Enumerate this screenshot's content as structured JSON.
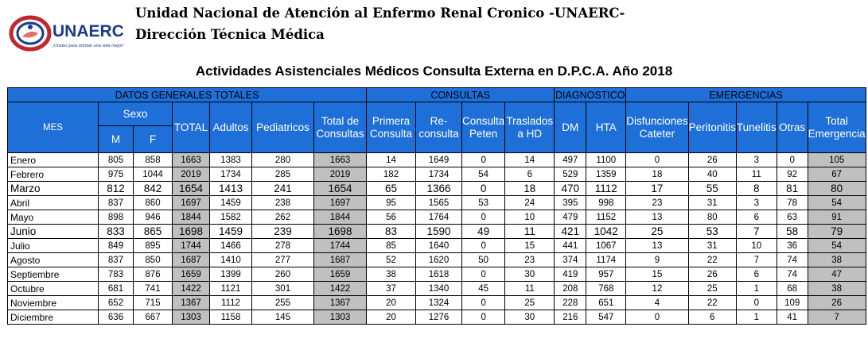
{
  "header": {
    "logo_text": "UNAERC",
    "logo_tagline": "¡Unidos para brindar una vida mejor!",
    "line1": "Unidad Nacional de Atención al Enfermo Renal Cronico -UNAERC-",
    "line2": "Dirección Técnica Médica"
  },
  "title": "Actividades Asistenciales Médicos Consulta Externa en D.P.C.A. Año 2018",
  "table": {
    "sections": {
      "datos": "DATOS GENERALES TOTALES",
      "consultas": "CONSULTAS",
      "diagnostico": "DIAGNOSTICO",
      "emergencias": "EMERGENCIAS"
    },
    "headers": {
      "mes": "MES",
      "sexo": "Sexo",
      "m": "M",
      "f": "F",
      "total": "TOTAL",
      "adultos": "Adultos",
      "pediatricos": "Pediatricos",
      "total_consultas": "Total de Consultas",
      "primera": "Primera Consulta",
      "reconsulta": "Re-consulta",
      "peten": "Consulta Peten",
      "traslados": "Traslados a HD",
      "dm": "DM",
      "hta": "HTA",
      "disfunciones": "Disfunciones Cateter",
      "peritonitis": "Peritonitis",
      "tunelitis": "Tunelitis",
      "otras": "Otras",
      "total_emergencia": "Total Emergencia"
    },
    "rows": [
      {
        "mes": "Enero",
        "m": "805",
        "f": "858",
        "total": "1663",
        "adultos": "1383",
        "ped": "280",
        "tc": "1663",
        "prim": "14",
        "rec": "1649",
        "pet": "0",
        "tras": "14",
        "dm": "497",
        "hta": "1100",
        "disf": "0",
        "perit": "26",
        "tun": "3",
        "otras": "0",
        "te": "105"
      },
      {
        "mes": "Febrero",
        "m": "975",
        "f": "1044",
        "total": "2019",
        "adultos": "1734",
        "ped": "285",
        "tc": "2019",
        "prim": "182",
        "rec": "1734",
        "pet": "54",
        "tras": "6",
        "dm": "529",
        "hta": "1359",
        "disf": "18",
        "perit": "40",
        "tun": "11",
        "otras": "92",
        "te": "67"
      },
      {
        "mes": "Marzo",
        "m": "812",
        "f": "842",
        "total": "1654",
        "adultos": "1413",
        "ped": "241",
        "tc": "1654",
        "prim": "65",
        "rec": "1366",
        "pet": "0",
        "tras": "18",
        "dm": "470",
        "hta": "1112",
        "disf": "17",
        "perit": "55",
        "tun": "8",
        "otras": "81",
        "te": "80"
      },
      {
        "mes": "Abril",
        "m": "837",
        "f": "860",
        "total": "1697",
        "adultos": "1459",
        "ped": "238",
        "tc": "1697",
        "prim": "95",
        "rec": "1565",
        "pet": "53",
        "tras": "24",
        "dm": "395",
        "hta": "998",
        "disf": "23",
        "perit": "31",
        "tun": "3",
        "otras": "78",
        "te": "54"
      },
      {
        "mes": "Mayo",
        "m": "898",
        "f": "946",
        "total": "1844",
        "adultos": "1582",
        "ped": "262",
        "tc": "1844",
        "prim": "56",
        "rec": "1764",
        "pet": "0",
        "tras": "10",
        "dm": "479",
        "hta": "1152",
        "disf": "13",
        "perit": "80",
        "tun": "6",
        "otras": "63",
        "te": "91"
      },
      {
        "mes": "Junio",
        "m": "833",
        "f": "865",
        "total": "1698",
        "adultos": "1459",
        "ped": "239",
        "tc": "1698",
        "prim": "83",
        "rec": "1590",
        "pet": "49",
        "tras": "11",
        "dm": "421",
        "hta": "1042",
        "disf": "25",
        "perit": "53",
        "tun": "7",
        "otras": "58",
        "te": "79"
      },
      {
        "mes": "Julio",
        "m": "849",
        "f": "895",
        "total": "1744",
        "adultos": "1466",
        "ped": "278",
        "tc": "1744",
        "prim": "85",
        "rec": "1640",
        "pet": "0",
        "tras": "15",
        "dm": "441",
        "hta": "1067",
        "disf": "13",
        "perit": "31",
        "tun": "10",
        "otras": "36",
        "te": "54"
      },
      {
        "mes": "Agosto",
        "m": "837",
        "f": "850",
        "total": "1687",
        "adultos": "1410",
        "ped": "277",
        "tc": "1687",
        "prim": "52",
        "rec": "1620",
        "pet": "50",
        "tras": "23",
        "dm": "374",
        "hta": "1174",
        "disf": "9",
        "perit": "22",
        "tun": "7",
        "otras": "74",
        "te": "38"
      },
      {
        "mes": "Septiembre",
        "m": "783",
        "f": "876",
        "total": "1659",
        "adultos": "1399",
        "ped": "260",
        "tc": "1659",
        "prim": "38",
        "rec": "1618",
        "pet": "0",
        "tras": "30",
        "dm": "419",
        "hta": "957",
        "disf": "15",
        "perit": "26",
        "tun": "6",
        "otras": "74",
        "te": "47"
      },
      {
        "mes": "Octubre",
        "m": "681",
        "f": "741",
        "total": "1422",
        "adultos": "1121",
        "ped": "301",
        "tc": "1422",
        "prim": "37",
        "rec": "1340",
        "pet": "45",
        "tras": "11",
        "dm": "208",
        "hta": "768",
        "disf": "12",
        "perit": "25",
        "tun": "1",
        "otras": "68",
        "te": "38"
      },
      {
        "mes": "Noviembre",
        "m": "652",
        "f": "715",
        "total": "1367",
        "adultos": "1112",
        "ped": "255",
        "tc": "1367",
        "prim": "20",
        "rec": "1324",
        "pet": "0",
        "tras": "25",
        "dm": "228",
        "hta": "651",
        "disf": "4",
        "perit": "22",
        "tun": "0",
        "otras": "109",
        "te": "26"
      },
      {
        "mes": "Diciembre",
        "m": "636",
        "f": "667",
        "total": "1303",
        "adultos": "1158",
        "ped": "145",
        "tc": "1303",
        "prim": "20",
        "rec": "1276",
        "pet": "0",
        "tras": "30",
        "dm": "216",
        "hta": "547",
        "disf": "0",
        "perit": "6",
        "tun": "1",
        "otras": "41",
        "te": "7"
      }
    ]
  },
  "colors": {
    "header_fill": "#1f6fd8",
    "total_fill": "#c0c0c0",
    "logo_red": "#c0282d",
    "logo_blue": "#1b3a8c"
  },
  "icons": [
    "unaerc-logo-icon"
  ]
}
